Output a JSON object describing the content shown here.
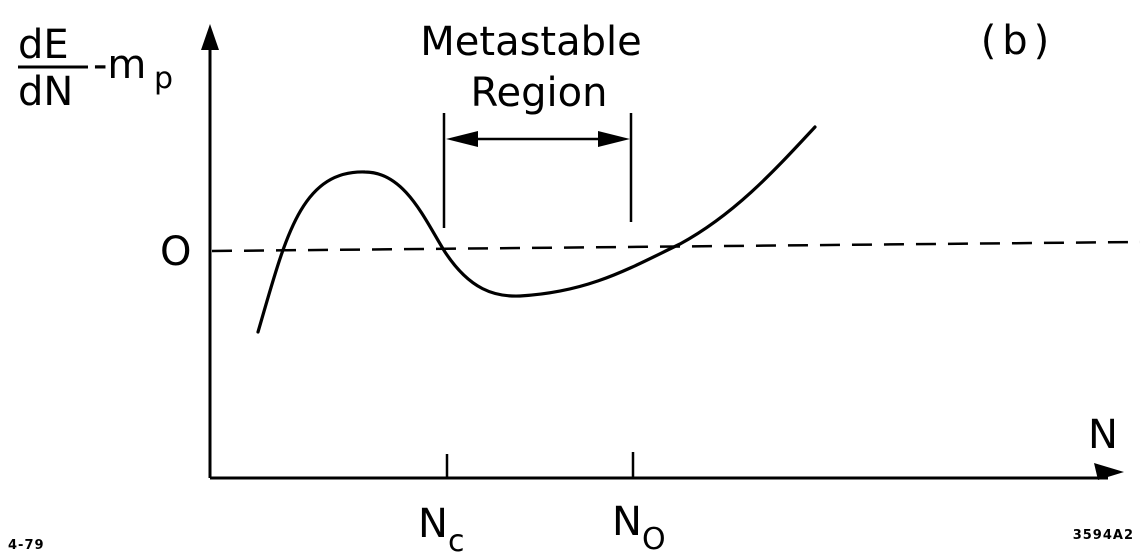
{
  "panel_label": "(b)",
  "y_axis": {
    "numerator": "dE",
    "denominator": "dN",
    "minus_term": "-m",
    "minus_term_subscript": "p",
    "zero_label": "O"
  },
  "x_axis": {
    "label": "N",
    "ticks": [
      {
        "main": "N",
        "sub": "c"
      },
      {
        "main": "N",
        "sub": "O"
      }
    ]
  },
  "region": {
    "line1": "Metastable",
    "line2": "Region"
  },
  "footer": {
    "date_code": "4-79",
    "figure_code": "3594A2"
  }
}
